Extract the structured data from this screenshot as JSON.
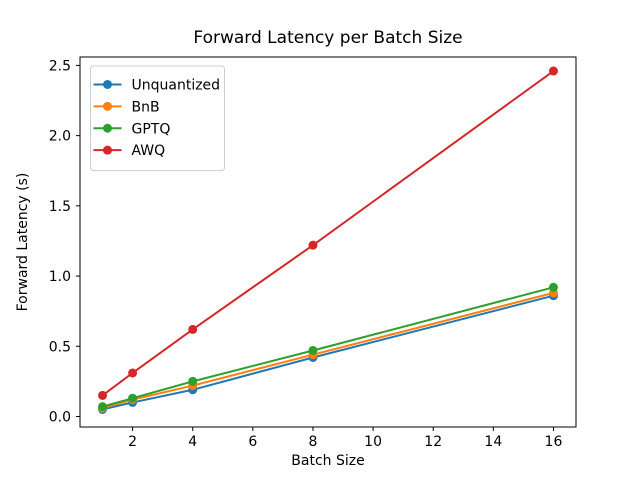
{
  "chart_data": {
    "type": "line",
    "title": "Forward Latency per Batch Size",
    "xlabel": "Batch Size",
    "ylabel": "Forward Latency (s)",
    "x": [
      1,
      2,
      4,
      8,
      16
    ],
    "series": [
      {
        "name": "Unquantized",
        "color": "#1f77b4",
        "values": [
          0.05,
          0.1,
          0.19,
          0.42,
          0.86
        ]
      },
      {
        "name": "BnB",
        "color": "#ff7f0e",
        "values": [
          0.06,
          0.12,
          0.22,
          0.44,
          0.88
        ]
      },
      {
        "name": "GPTQ",
        "color": "#2ca02c",
        "values": [
          0.07,
          0.13,
          0.25,
          0.47,
          0.92
        ]
      },
      {
        "name": "AWQ",
        "color": "#d62728",
        "values": [
          0.15,
          0.31,
          0.62,
          1.22,
          2.46
        ]
      }
    ],
    "xticks": [
      "2",
      "4",
      "6",
      "8",
      "10",
      "12",
      "14",
      "16"
    ],
    "xtick_values": [
      2,
      4,
      6,
      8,
      10,
      12,
      14,
      16
    ],
    "yticks": [
      "0.0",
      "0.5",
      "1.0",
      "1.5",
      "2.0",
      "2.5"
    ],
    "ytick_values": [
      0.0,
      0.5,
      1.0,
      1.5,
      2.0,
      2.5
    ],
    "xlim": [
      0.25,
      16.75
    ],
    "ylim": [
      -0.075,
      2.56
    ],
    "grid": false,
    "legend_position": "upper left",
    "marker": "circle",
    "axis_color": "#000000",
    "legend_border_color": "#cccccc",
    "background_color": "#ffffff"
  }
}
